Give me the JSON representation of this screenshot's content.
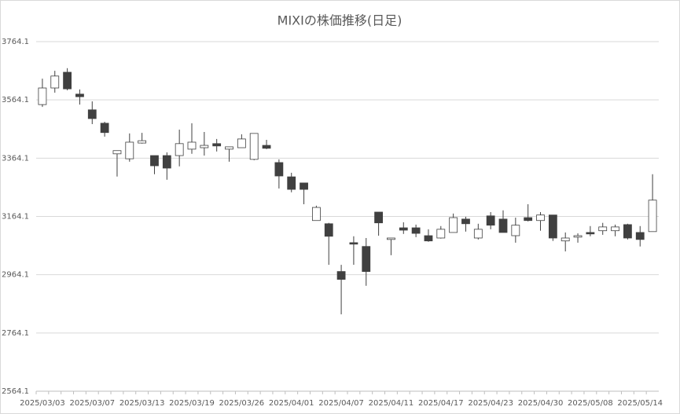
{
  "chart_data": {
    "type": "candlestick",
    "title": "MIXIの株価推移(日足)",
    "categories": [
      "2025/03/03",
      null,
      null,
      null,
      "2025/03/07",
      null,
      null,
      null,
      "2025/03/13",
      null,
      null,
      null,
      "2025/03/19",
      null,
      null,
      null,
      "2025/03/26",
      null,
      null,
      null,
      "2025/04/01",
      null,
      null,
      null,
      "2025/04/07",
      null,
      null,
      null,
      "2025/04/11",
      null,
      null,
      null,
      "2025/04/17",
      null,
      null,
      null,
      "2025/04/23",
      null,
      null,
      null,
      "2025/04/30",
      null,
      null,
      null,
      "2025/05/08",
      null,
      null,
      null,
      "2025/05/14",
      null
    ],
    "open": [
      3548,
      3605,
      3659,
      3584,
      3530,
      3484,
      3379,
      3362,
      3416,
      3373,
      3373,
      3373,
      3395,
      3400,
      3414,
      3395,
      3400,
      3360,
      3408,
      3349,
      3300,
      3279,
      3150,
      3139,
      2975,
      3074,
      3061,
      3179,
      3085,
      3125,
      3125,
      3098,
      3090,
      3109,
      3155,
      3090,
      3166,
      3155,
      3098,
      3160,
      3150,
      3169,
      3080,
      3093,
      3109,
      3115,
      3115,
      3136,
      3109,
      3112
    ],
    "high": [
      3637,
      3664,
      3673,
      3600,
      3559,
      3489,
      3390,
      3449,
      3451,
      3373,
      3384,
      3462,
      3484,
      3454,
      3430,
      3403,
      3446,
      3449,
      3427,
      3360,
      3314,
      3279,
      3201,
      3142,
      2998,
      3096,
      3090,
      3179,
      3090,
      3144,
      3136,
      3120,
      3131,
      3174,
      3163,
      3139,
      3179,
      3185,
      3160,
      3206,
      3179,
      3169,
      3109,
      3106,
      3131,
      3142,
      3136,
      3139,
      3131,
      3309
    ],
    "low": [
      3540,
      3589,
      3597,
      3548,
      3481,
      3438,
      3301,
      3352,
      3414,
      3309,
      3290,
      3336,
      3379,
      3373,
      3387,
      3352,
      3400,
      3357,
      3395,
      3260,
      3247,
      3206,
      3150,
      2998,
      2828,
      2998,
      2926,
      3098,
      3031,
      3104,
      3093,
      3077,
      3088,
      3109,
      3112,
      3085,
      3120,
      3109,
      3074,
      3147,
      3115,
      3080,
      3044,
      3074,
      3096,
      3101,
      3096,
      3085,
      3061,
      3112
    ],
    "close": [
      3605,
      3646,
      3602,
      3575,
      3500,
      3452,
      3390,
      3419,
      3424,
      3338,
      3330,
      3414,
      3419,
      3408,
      3406,
      3403,
      3430,
      3449,
      3398,
      3303,
      3257,
      3257,
      3195,
      3096,
      2948,
      3069,
      2975,
      3142,
      3090,
      3117,
      3106,
      3080,
      3120,
      3160,
      3139,
      3120,
      3134,
      3109,
      3134,
      3150,
      3169,
      3090,
      3090,
      3098,
      3104,
      3128,
      3128,
      3090,
      3085,
      3220
    ],
    "up_color": "#ffffff",
    "down_color": "#404040",
    "line_color": "#404040",
    "ylim": [
      2564.1,
      3764.1
    ],
    "yticks": [
      2564.1,
      2764.1,
      2964.1,
      3164.1,
      3364.1,
      3564.1,
      3764.1
    ],
    "grid": true
  }
}
